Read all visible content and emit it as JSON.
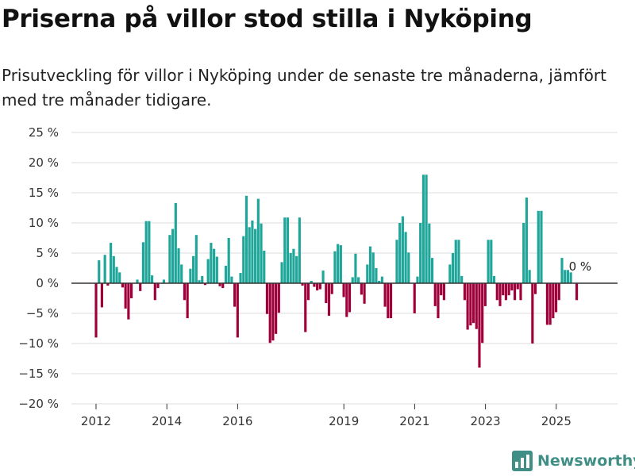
{
  "chart_data": {
    "type": "bar",
    "title": "Priserna på villor stod stilla i Nyköping",
    "subtitle": "Prisutveckling för villor i Nyköping under de senaste tre månaderna, jämfört med tre månader tidigare.",
    "xlabel": "",
    "ylabel": "",
    "ylim": [
      -20,
      25
    ],
    "y_ticks": [
      25,
      20,
      15,
      10,
      5,
      0,
      -5,
      -10,
      -15,
      -20
    ],
    "y_tick_labels": [
      "25 %",
      "20 %",
      "15 %",
      "10 %",
      "5 %",
      "0 %",
      "−5 %",
      "−10 %",
      "−15 %",
      "−20 %"
    ],
    "x_ticks": [
      2012,
      2014,
      2016,
      2019,
      2021,
      2023,
      2025
    ],
    "x_tick_labels": [
      "2012",
      "2014",
      "2016",
      "2019",
      "2021",
      "2023",
      "2025"
    ],
    "x_start": 2012.0,
    "x_step": 0.0833,
    "grid": true,
    "positive_color": "#1fa69a",
    "negative_color": "#a0003a",
    "annotation": {
      "text": "0 %",
      "value": 0
    },
    "values": [
      -9,
      3.8,
      -4,
      4.7,
      -0.4,
      6.7,
      4.5,
      2.7,
      1.8,
      -0.7,
      -4.2,
      -6,
      -2.5,
      0,
      0.6,
      -1.3,
      6.8,
      10.3,
      10.3,
      1.3,
      -2.8,
      -0.8,
      0,
      0.6,
      0,
      8,
      9,
      13.3,
      5.8,
      3.1,
      -2.8,
      -5.8,
      2.4,
      4.5,
      8,
      0.5,
      1.2,
      -0.3,
      4,
      6.7,
      5.7,
      4.4,
      -0.5,
      -0.8,
      2.9,
      7.5,
      1.1,
      -3.9,
      -9,
      1.7,
      7.8,
      14.5,
      9.3,
      10.4,
      9,
      14,
      9.9,
      5.4,
      -5.1,
      -9.9,
      -9.5,
      -8.4,
      -4.9,
      3.5,
      10.9,
      10.9,
      5,
      5.7,
      4.5,
      10.9,
      -0.4,
      -8.1,
      -2.8,
      0.4,
      -0.6,
      -1.2,
      -1,
      2.1,
      -3.3,
      -5.4,
      -1.8,
      5.3,
      6.5,
      6.3,
      -2.3,
      -5.6,
      -4.8,
      1,
      4.9,
      1,
      -1.9,
      -3.4,
      3.1,
      6.1,
      5.1,
      2.5,
      0.4,
      1.1,
      -3.9,
      -5.8,
      -5.8,
      0,
      7.2,
      10,
      11.1,
      8.5,
      5.1,
      0,
      -5,
      1.1,
      10,
      18,
      18,
      9.9,
      4.2,
      -3.8,
      -5.8,
      -2,
      -2.8,
      0,
      3.1,
      5,
      7.2,
      7.2,
      1.2,
      -2.8,
      -7.7,
      -7,
      -6.6,
      -7.6,
      -14,
      -9.9,
      -3.8,
      7.2,
      7.2,
      1.2,
      -2.8,
      -3.8,
      -2,
      -2.8,
      -2,
      -1.2,
      -2.8,
      -1,
      -2.8,
      10,
      14.2,
      2.2,
      -10,
      -1.8,
      12,
      12,
      0,
      -6.9,
      -6.9,
      -5.8,
      -4.8,
      -2.8,
      4.2,
      2.2,
      2.2,
      1.8,
      0,
      -2.8
    ],
    "sparse_values_note": ""
  },
  "logo": {
    "text": "Newsworthy",
    "icon": "bar-chart-icon"
  }
}
